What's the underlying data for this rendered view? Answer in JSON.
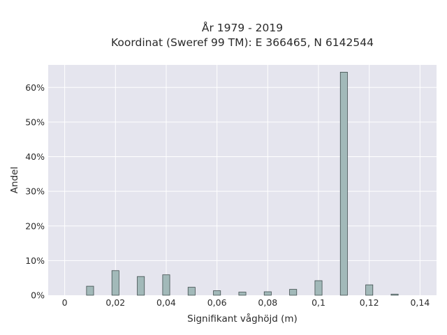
{
  "chart_data": {
    "type": "bar",
    "title_lines": [
      "År 1979 - 2019",
      "Koordinat (Sweref 99 TM): E 366465, N 6142544"
    ],
    "xlabel": "Signifikant våghöjd (m)",
    "ylabel": "Andel",
    "xlim": [
      -0.0065,
      0.1465
    ],
    "ylim": [
      0,
      66.5
    ],
    "x_ticks": [
      0,
      0.02,
      0.04,
      0.06,
      0.08,
      0.1,
      0.12,
      0.14
    ],
    "x_tick_labels": [
      "0",
      "0,02",
      "0,04",
      "0,06",
      "0,08",
      "0,1",
      "0,12",
      "0,14"
    ],
    "y_ticks": [
      0,
      10,
      20,
      30,
      40,
      50,
      60
    ],
    "y_tick_labels": [
      "0%",
      "10%",
      "20%",
      "30%",
      "40%",
      "50%",
      "60%"
    ],
    "bar_width": 0.0028,
    "x": [
      0.01,
      0.02,
      0.03,
      0.04,
      0.05,
      0.06,
      0.07,
      0.08,
      0.09,
      0.1,
      0.11,
      0.12,
      0.13
    ],
    "values": [
      2.6,
      7.1,
      5.4,
      5.9,
      2.3,
      1.3,
      0.9,
      1.0,
      1.7,
      4.2,
      64.4,
      3.0,
      0.3
    ],
    "grid": true,
    "colors": {
      "plot_background": "#e5e5ee",
      "grid": "#ffffff",
      "bar_fill": "#a2b9b9",
      "bar_stroke": "#3f4d4d"
    }
  }
}
